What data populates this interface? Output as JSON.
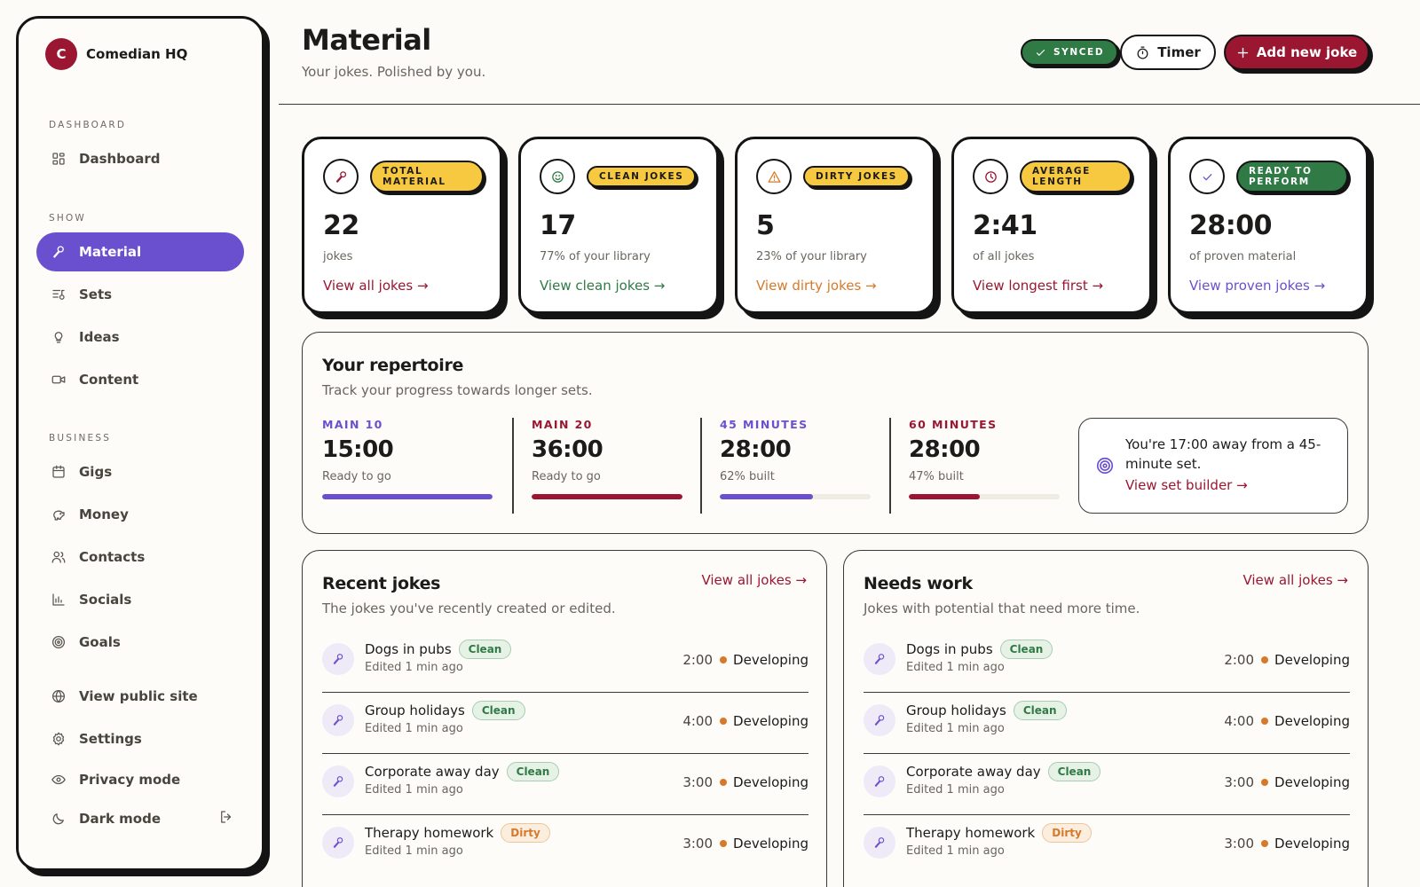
{
  "brand": {
    "initial": "C",
    "name": "Comedian HQ"
  },
  "sidebar": {
    "sections": {
      "dashboard": "DASHBOARD",
      "show": "SHOW",
      "business": "BUSINESS"
    },
    "items": {
      "dashboard": {
        "label": "Dashboard",
        "icon": "dashboard-icon"
      },
      "material": {
        "label": "Material",
        "icon": "microphone-icon"
      },
      "sets": {
        "label": "Sets",
        "icon": "list-icon"
      },
      "ideas": {
        "label": "Ideas",
        "icon": "lightbulb-icon"
      },
      "content": {
        "label": "Content",
        "icon": "video-icon"
      },
      "gigs": {
        "label": "Gigs",
        "icon": "calendar-icon"
      },
      "money": {
        "label": "Money",
        "icon": "piggy-bank-icon"
      },
      "contacts": {
        "label": "Contacts",
        "icon": "users-icon"
      },
      "socials": {
        "label": "Socials",
        "icon": "bar-chart-icon"
      },
      "goals": {
        "label": "Goals",
        "icon": "target-icon"
      },
      "public_site": {
        "label": "View public site",
        "icon": "globe-icon"
      },
      "settings": {
        "label": "Settings",
        "icon": "gear-icon"
      },
      "privacy": {
        "label": "Privacy mode",
        "icon": "eye-icon"
      },
      "dark": {
        "label": "Dark mode",
        "icon": "moon-icon"
      }
    }
  },
  "header": {
    "title": "Material",
    "subtitle": "Your jokes. Polished by you.",
    "synced_label": "SYNCED",
    "timer_label": "Timer",
    "add_label": "Add new joke"
  },
  "colors": {
    "accent_purple": "#6a50cf",
    "brand_red": "#9b1631",
    "green": "#2f7a45",
    "yellow": "#f7c940",
    "orange": "#d7792a"
  },
  "stats": [
    {
      "badge": "TOTAL MATERIAL",
      "value": "22",
      "caption": "jokes",
      "link": "View all jokes →",
      "icon": "microphone-icon"
    },
    {
      "badge": "CLEAN JOKES",
      "value": "17",
      "caption": "77% of your library",
      "link": "View clean jokes →",
      "icon": "smile-icon"
    },
    {
      "badge": "DIRTY JOKES",
      "value": "5",
      "caption": "23% of your library",
      "link": "View dirty jokes →",
      "icon": "warning-icon"
    },
    {
      "badge": "AVERAGE LENGTH",
      "value": "2:41",
      "caption": "of all jokes",
      "link": "View longest first →",
      "icon": "clock-icon"
    },
    {
      "badge": "READY TO PERFORM",
      "value": "28:00",
      "caption": "of proven material",
      "link": "View proven jokes →",
      "icon": "check-icon"
    }
  ],
  "repertoire": {
    "title": "Your repertoire",
    "subtitle": "Track your progress towards longer sets.",
    "goals": [
      {
        "label": "MAIN 10",
        "time": "15:00",
        "status": "Ready to go",
        "progress": 1.0
      },
      {
        "label": "MAIN 20",
        "time": "36:00",
        "status": "Ready to go",
        "progress": 1.0
      },
      {
        "label": "45 MINUTES",
        "time": "28:00",
        "status": "62% built",
        "progress": 0.62
      },
      {
        "label": "60 MINUTES",
        "time": "28:00",
        "status": "47% built",
        "progress": 0.47
      }
    ],
    "callout": {
      "text": "You're 17:00 away from a 45-minute set.",
      "link": "View set builder →"
    }
  },
  "recent": {
    "title": "Recent jokes",
    "subtitle": "The jokes you've recently created or edited.",
    "link": "View all jokes →",
    "rows": [
      {
        "title": "Dogs in pubs",
        "tag": "Clean",
        "edited": "Edited 1 min ago",
        "duration": "2:00",
        "status": "Developing"
      },
      {
        "title": "Group holidays",
        "tag": "Clean",
        "edited": "Edited 1 min ago",
        "duration": "4:00",
        "status": "Developing"
      },
      {
        "title": "Corporate away day",
        "tag": "Clean",
        "edited": "Edited 1 min ago",
        "duration": "3:00",
        "status": "Developing"
      },
      {
        "title": "Therapy homework",
        "tag": "Dirty",
        "edited": "Edited 1 min ago",
        "duration": "3:00",
        "status": "Developing"
      }
    ]
  },
  "needs_work": {
    "title": "Needs work",
    "subtitle": "Jokes with potential that need more time.",
    "link": "View all jokes →",
    "rows": [
      {
        "title": "Dogs in pubs",
        "tag": "Clean",
        "edited": "Edited 1 min ago",
        "duration": "2:00",
        "status": "Developing"
      },
      {
        "title": "Group holidays",
        "tag": "Clean",
        "edited": "Edited 1 min ago",
        "duration": "4:00",
        "status": "Developing"
      },
      {
        "title": "Corporate away day",
        "tag": "Clean",
        "edited": "Edited 1 min ago",
        "duration": "3:00",
        "status": "Developing"
      },
      {
        "title": "Therapy homework",
        "tag": "Dirty",
        "edited": "Edited 1 min ago",
        "duration": "3:00",
        "status": "Developing"
      }
    ]
  }
}
